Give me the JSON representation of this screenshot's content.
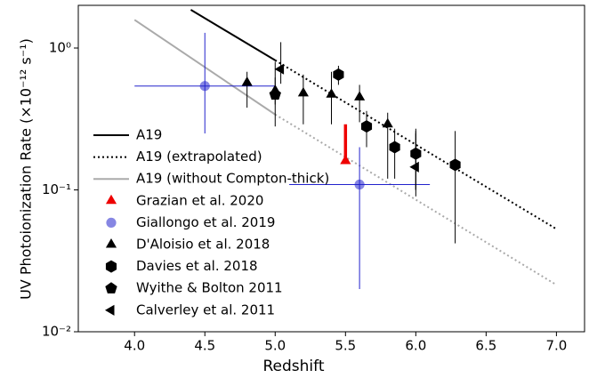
{
  "chart_data": {
    "type": "scatter",
    "xlabel": "Redshift",
    "ylabel": "UV Photoionization Rate (×10⁻¹² s⁻¹)",
    "xlim": [
      3.6,
      7.2
    ],
    "ylim": [
      0.01,
      2
    ],
    "log_y": true,
    "xticks": [
      {
        "value": 4,
        "label": "4.0"
      },
      {
        "value": 4.5,
        "label": "4.5"
      },
      {
        "value": 5,
        "label": "5.0"
      },
      {
        "value": 5.5,
        "label": "5.5"
      },
      {
        "value": 6,
        "label": "6.0"
      },
      {
        "value": 6.5,
        "label": "6.5"
      },
      {
        "value": 7,
        "label": "7.0"
      }
    ],
    "yticks": [
      {
        "value": 0.01,
        "label": "10⁻²"
      },
      {
        "value": 0.1,
        "label": "10⁻¹"
      },
      {
        "value": 1,
        "label": "10⁰"
      }
    ],
    "legend": "center-left",
    "lines": [
      {
        "name": "A19",
        "color": "#000000",
        "dash": "solid",
        "x": [
          4.4,
          5.0
        ],
        "values": [
          1.86,
          0.82
        ]
      },
      {
        "name": "A19 (extrapolated)",
        "color": "#000000",
        "dash": "dotted",
        "x": [
          5.0,
          7.0
        ],
        "values": [
          0.82,
          0.053
        ]
      },
      {
        "name": "A19 (without Compton-thick)",
        "color": "#aaaaaa",
        "dash": "solid",
        "x": [
          4.0,
          5.0
        ],
        "values": [
          1.58,
          0.34
        ]
      },
      {
        "color": "#aaaaaa",
        "dash": "dotted",
        "x": [
          5.0,
          7.0
        ],
        "values": [
          0.34,
          0.0214
        ]
      }
    ],
    "series": [
      {
        "name": "Grazian et al. 2020",
        "marker": "triangle",
        "color": "#ee0000",
        "points": [
          {
            "x": 5.5,
            "y": 0.16,
            "yhigh": 0.29
          }
        ]
      },
      {
        "name": "Giallongo et al. 2019",
        "marker": "circle",
        "color": "#2222cc",
        "points": [
          {
            "x": 4.5,
            "y": 0.54,
            "ylow": 0.25,
            "yhigh": 1.28,
            "xlow": 4.0,
            "xhigh": 5.0
          },
          {
            "x": 5.6,
            "y": 0.109,
            "ylow": 0.02,
            "yhigh": 0.2,
            "xlow": 5.1,
            "xhigh": 6.1
          }
        ]
      },
      {
        "name": "D'Aloisio et al. 2018",
        "marker": "triangle",
        "color": "#000000",
        "points": [
          {
            "x": 4.8,
            "y": 0.57,
            "ylow": 0.38,
            "yhigh": 0.68
          },
          {
            "x": 5.0,
            "y": 0.5,
            "ylow": 0.4,
            "yhigh": 0.62
          },
          {
            "x": 5.2,
            "y": 0.48,
            "ylow": 0.29,
            "yhigh": 0.65
          },
          {
            "x": 5.4,
            "y": 0.47,
            "ylow": 0.29,
            "yhigh": 0.68
          },
          {
            "x": 5.6,
            "y": 0.45,
            "ylow": 0.3,
            "yhigh": 0.55
          },
          {
            "x": 5.8,
            "y": 0.29,
            "ylow": 0.12,
            "yhigh": 0.35
          },
          {
            "x": 6.0,
            "y": 0.18,
            "ylow": 0.1,
            "yhigh": 0.25
          }
        ]
      },
      {
        "name": "Davies et al. 2018",
        "marker": "hexagon",
        "color": "#000000",
        "points": [
          {
            "x": 5.45,
            "y": 0.65,
            "ylow": 0.55,
            "yhigh": 0.75
          },
          {
            "x": 5.65,
            "y": 0.28,
            "ylow": 0.2,
            "yhigh": 0.36
          },
          {
            "x": 5.85,
            "y": 0.2,
            "ylow": 0.12,
            "yhigh": 0.27
          },
          {
            "x": 6.0,
            "y": 0.18,
            "ylow": 0.1,
            "yhigh": 0.27
          },
          {
            "x": 6.28,
            "y": 0.15,
            "ylow": 0.042,
            "yhigh": 0.26
          }
        ]
      },
      {
        "name": "Wyithe & Bolton 2011",
        "marker": "pentagon",
        "color": "#000000",
        "points": [
          {
            "x": 5.0,
            "y": 0.47,
            "ylow": 0.28,
            "yhigh": 0.8
          }
        ]
      },
      {
        "name": "Calverley et al. 2011",
        "marker": "triangle-left",
        "color": "#000000",
        "points": [
          {
            "x": 5.04,
            "y": 0.71,
            "ylow": 0.56,
            "yhigh": 1.1
          },
          {
            "x": 6.0,
            "y": 0.145,
            "ylow": 0.09,
            "yhigh": 0.26
          }
        ]
      }
    ]
  }
}
